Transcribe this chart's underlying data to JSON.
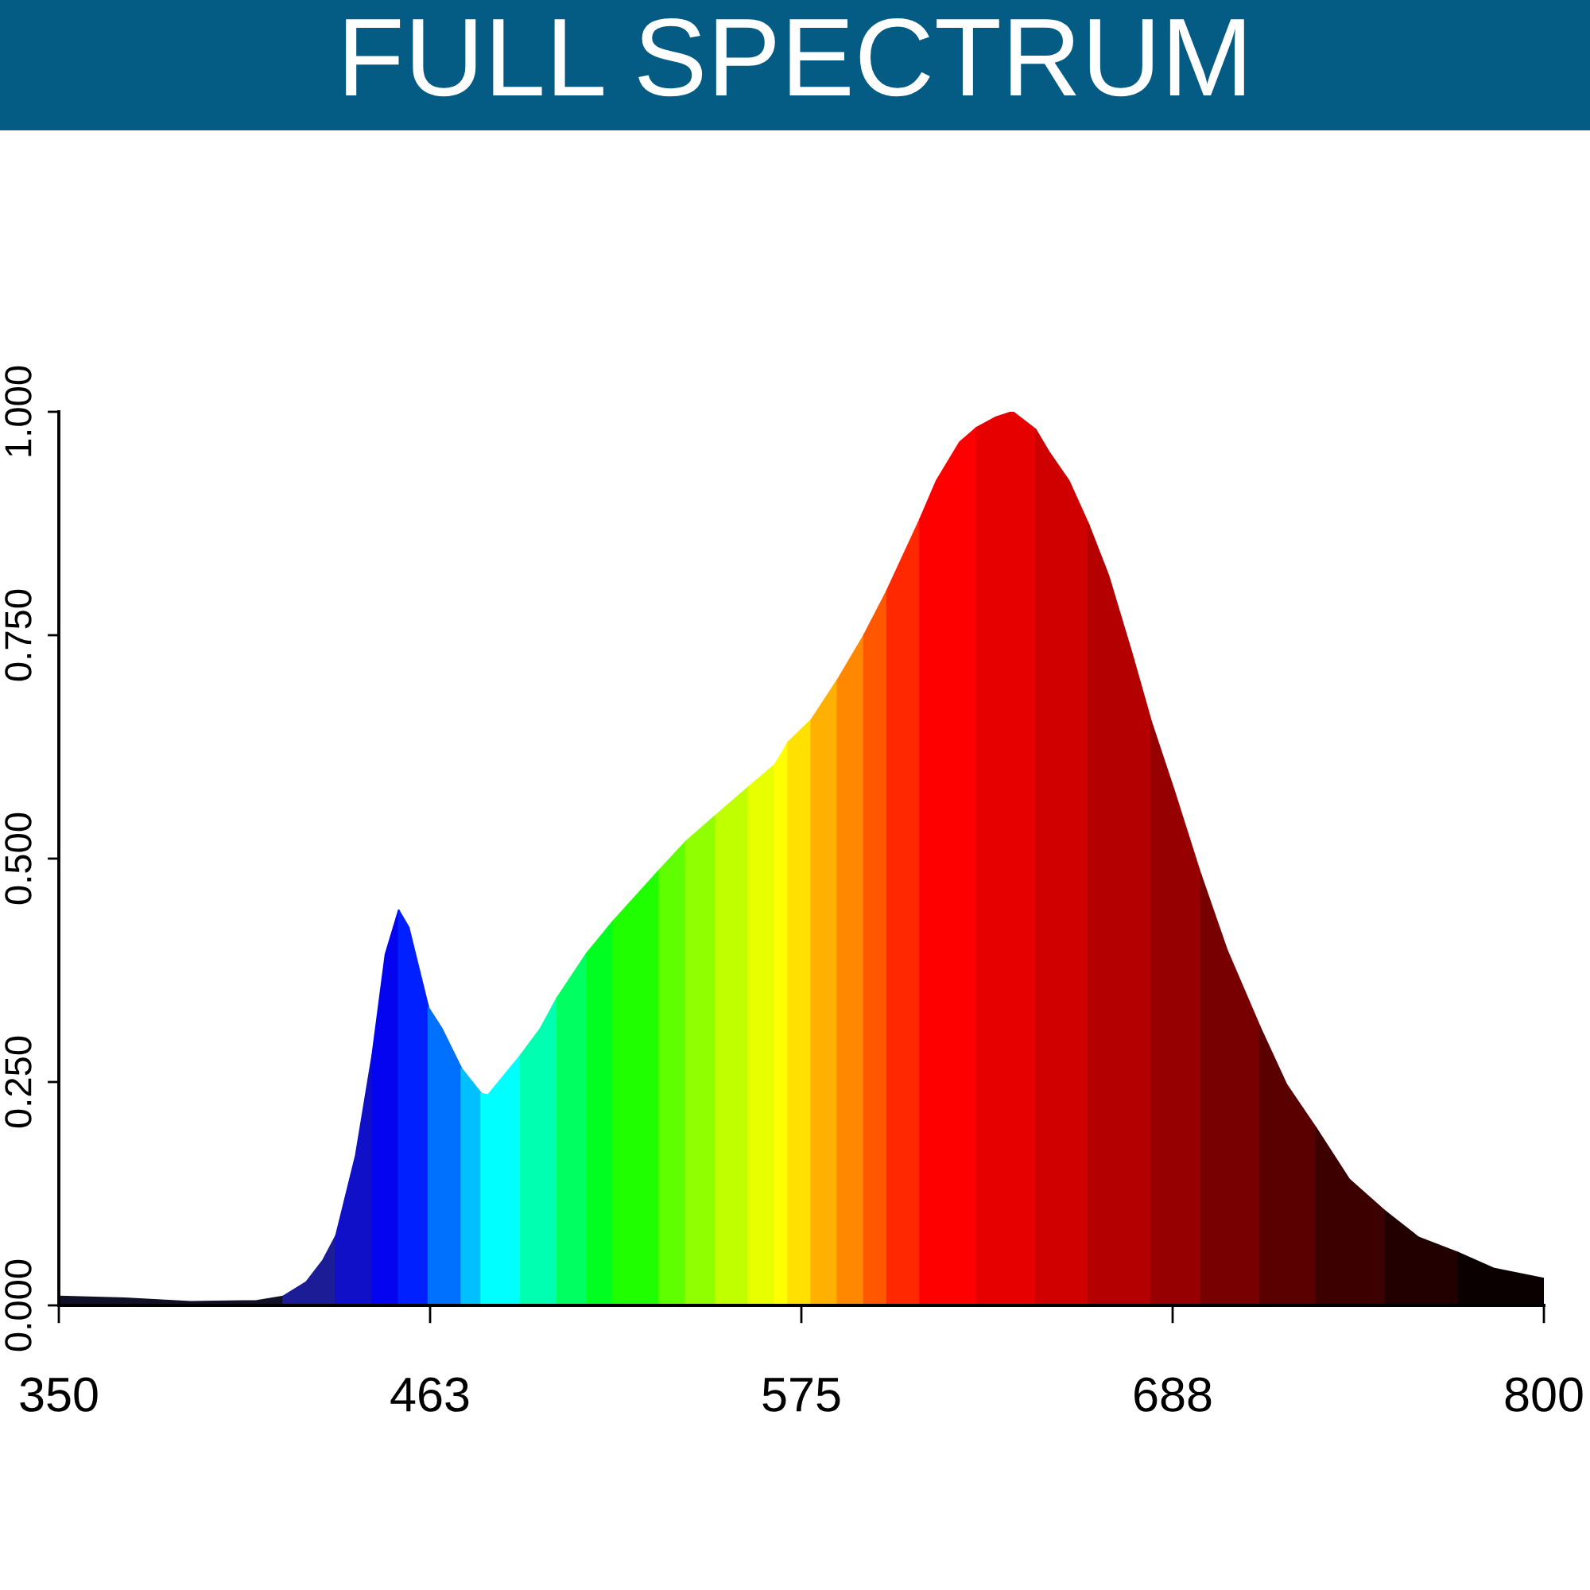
{
  "chart_data": {
    "type": "area",
    "title": "FULL SPECTRUM",
    "xlim": [
      350,
      800
    ],
    "xticks": [
      350,
      {
        "value": 462.5,
        "label": "463"
      },
      575,
      {
        "value": 687.5,
        "label": "688"
      },
      800
    ],
    "ylim": [
      0,
      1
    ],
    "yticks": [
      {
        "value": 0,
        "label": "0.000"
      },
      {
        "value": 0.25,
        "label": "0.250"
      },
      {
        "value": 0.5,
        "label": "0.500"
      },
      {
        "value": 0.75,
        "label": "0.750"
      },
      {
        "value": 1,
        "label": "1.000"
      }
    ],
    "series": [
      {
        "color": "#101028",
        "x": [
          350,
          370,
          390,
          410,
          418
        ],
        "values": [
          0.01,
          0.008,
          0.004,
          0.005,
          0.01
        ]
      },
      {
        "color": "#1c1c96",
        "x": [
          418,
          425,
          430,
          434
        ],
        "values": [
          0.01,
          0.026,
          0.05,
          0.078
        ]
      },
      {
        "color": "#1010c8",
        "x": [
          434,
          440,
          445
        ],
        "values": [
          0.078,
          0.168,
          0.28
        ]
      },
      {
        "color": "#0404f0",
        "x": [
          445,
          449,
          453
        ],
        "values": [
          0.28,
          0.393,
          0.442
        ]
      },
      {
        "color": "#0020ff",
        "x": [
          453,
          456,
          462
        ],
        "values": [
          0.442,
          0.423,
          0.333
        ]
      },
      {
        "color": "#0070ff",
        "x": [
          462,
          466,
          472
        ],
        "values": [
          0.333,
          0.31,
          0.265
        ]
      },
      {
        "color": "#00c0ff",
        "x": [
          472,
          478
        ],
        "values": [
          0.265,
          0.237
        ]
      },
      {
        "color": "#00ffff",
        "x": [
          478,
          480,
          490
        ],
        "values": [
          0.237,
          0.235,
          0.28
        ]
      },
      {
        "color": "#00ffb0",
        "x": [
          490,
          496,
          501
        ],
        "values": [
          0.28,
          0.31,
          0.344
        ]
      },
      {
        "color": "#00ff60",
        "x": [
          501,
          510
        ],
        "values": [
          0.344,
          0.394
        ]
      },
      {
        "color": "#00ff20",
        "x": [
          510,
          518
        ],
        "values": [
          0.394,
          0.43
        ]
      },
      {
        "color": "#20ff00",
        "x": [
          518,
          532
        ],
        "values": [
          0.43,
          0.487
        ]
      },
      {
        "color": "#60ff00",
        "x": [
          532,
          540
        ],
        "values": [
          0.487,
          0.519
        ]
      },
      {
        "color": "#90ff00",
        "x": [
          540,
          549
        ],
        "values": [
          0.519,
          0.548
        ]
      },
      {
        "color": "#c0ff00",
        "x": [
          549,
          559
        ],
        "values": [
          0.548,
          0.58
        ]
      },
      {
        "color": "#e8ff00",
        "x": [
          559,
          567
        ],
        "values": [
          0.58,
          0.605
        ]
      },
      {
        "color": "#ffff00",
        "x": [
          567,
          571
        ],
        "values": [
          0.605,
          0.63
        ]
      },
      {
        "color": "#ffe000",
        "x": [
          571,
          578
        ],
        "values": [
          0.63,
          0.655
        ]
      },
      {
        "color": "#ffb000",
        "x": [
          578,
          586
        ],
        "values": [
          0.655,
          0.7
        ]
      },
      {
        "color": "#ff8800",
        "x": [
          586,
          594
        ],
        "values": [
          0.7,
          0.75
        ]
      },
      {
        "color": "#ff5800",
        "x": [
          594,
          601
        ],
        "values": [
          0.75,
          0.8
        ]
      },
      {
        "color": "#ff2800",
        "x": [
          601,
          611
        ],
        "values": [
          0.8,
          0.88
        ]
      },
      {
        "color": "#ff0000",
        "x": [
          611,
          616,
          623,
          628
        ],
        "values": [
          0.88,
          0.923,
          0.966,
          0.982
        ]
      },
      {
        "color": "#e60000",
        "x": [
          628,
          634,
          639,
          646
        ],
        "values": [
          0.982,
          0.994,
          1.0,
          0.98
        ]
      },
      {
        "color": "#d00000",
        "x": [
          646,
          650,
          656,
          662
        ],
        "values": [
          0.98,
          0.955,
          0.923,
          0.874
        ]
      },
      {
        "color": "#b40000",
        "x": [
          662,
          668,
          675,
          681
        ],
        "values": [
          0.874,
          0.817,
          0.731,
          0.653
        ]
      },
      {
        "color": "#960000",
        "x": [
          681,
          688,
          696
        ],
        "values": [
          0.653,
          0.575,
          0.482
        ]
      },
      {
        "color": "#780000",
        "x": [
          696,
          704,
          714
        ],
        "values": [
          0.482,
          0.397,
          0.311
        ]
      },
      {
        "color": "#5a0000",
        "x": [
          714,
          722,
          731
        ],
        "values": [
          0.311,
          0.247,
          0.198
        ]
      },
      {
        "color": "#3c0000",
        "x": [
          731,
          741,
          752
        ],
        "values": [
          0.198,
          0.141,
          0.105
        ]
      },
      {
        "color": "#220000",
        "x": [
          752,
          762,
          774
        ],
        "values": [
          0.105,
          0.076,
          0.059
        ]
      },
      {
        "color": "#0a0000",
        "x": [
          774,
          785,
          800
        ],
        "values": [
          0.059,
          0.041,
          0.03
        ]
      }
    ]
  }
}
